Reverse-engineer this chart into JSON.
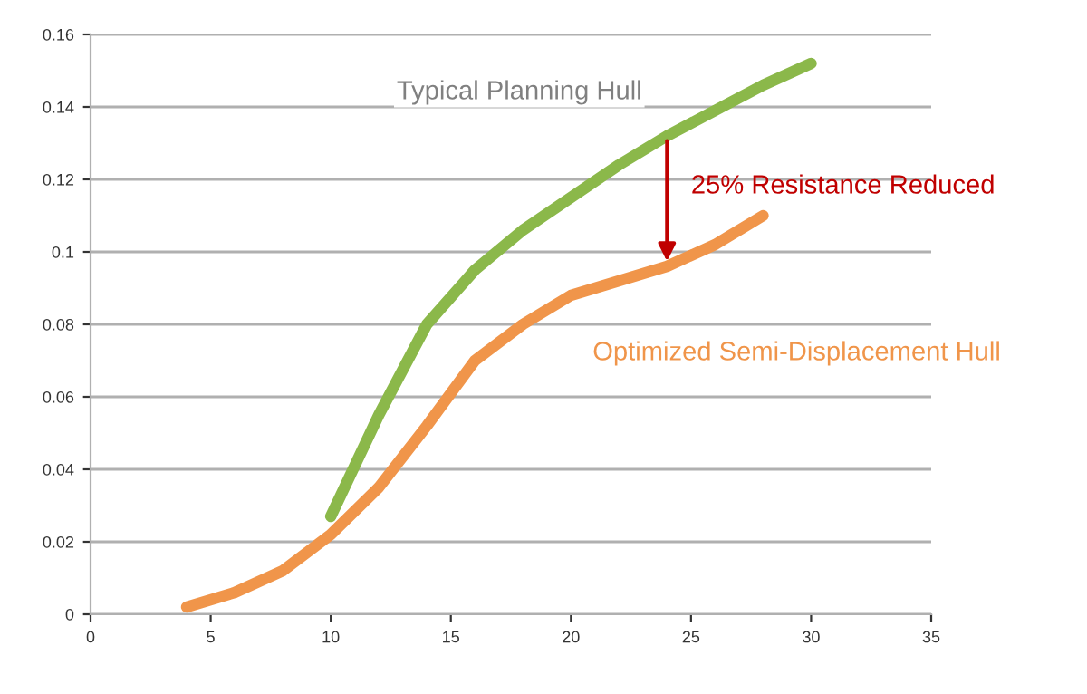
{
  "chart_data": {
    "type": "line",
    "x": [
      4,
      6,
      8,
      10,
      12,
      14,
      16,
      18,
      20,
      22,
      24,
      26,
      28
    ],
    "series": [
      {
        "name": "Typical Planning Hull",
        "color": "#8bb84a",
        "x": [
          10,
          12,
          14,
          16,
          18,
          20,
          22,
          24,
          26,
          28,
          30
        ],
        "values": [
          0.027,
          0.055,
          0.08,
          0.095,
          0.106,
          0.115,
          0.124,
          0.132,
          0.139,
          0.146,
          0.152
        ]
      },
      {
        "name": "Optimized Semi-Displacement Hull",
        "color": "#f0954a",
        "values": [
          0.002,
          0.006,
          0.012,
          0.022,
          0.035,
          0.052,
          0.07,
          0.08,
          0.088,
          0.092,
          0.096,
          0.102,
          0.11
        ]
      }
    ],
    "annotations": [
      {
        "text": "25% Resistance Reduced",
        "x": 24,
        "y": 0.096
      }
    ],
    "xlim": [
      0,
      35
    ],
    "xticks": [
      0,
      5,
      10,
      15,
      20,
      25,
      30,
      35
    ],
    "ylim": [
      0,
      0.16
    ],
    "yticks": [
      0,
      0.02,
      0.04,
      0.06,
      0.08,
      0.1,
      0.12,
      0.14,
      0.16
    ],
    "grid": "y",
    "marker": "none",
    "line_style": "solid"
  }
}
